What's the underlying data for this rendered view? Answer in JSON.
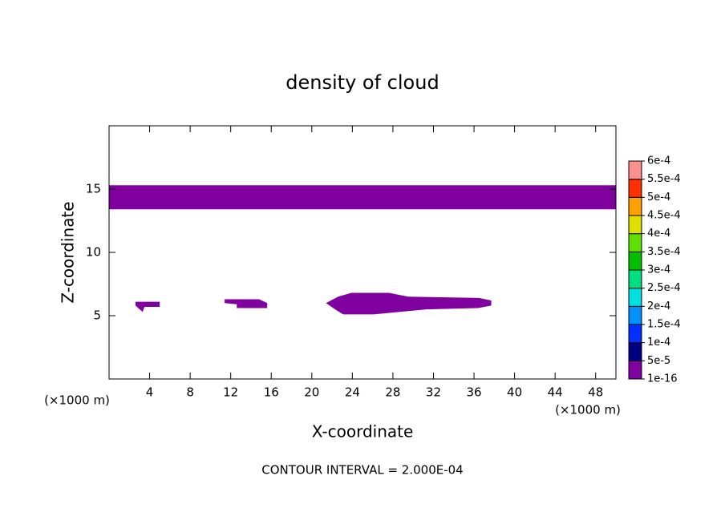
{
  "chart_data": {
    "type": "contour",
    "title": "density of cloud",
    "x_label": "X-coordinate",
    "y_label": "Z-coordinate",
    "x_unit_label": "(×1000 m)",
    "y_unit_label": "(×1000 m)",
    "footnote": "CONTOUR INTERVAL = 2.000E-04",
    "xlim": [
      0,
      50
    ],
    "ylim": [
      0,
      20
    ],
    "xticks": [
      4,
      8,
      12,
      16,
      20,
      24,
      28,
      32,
      36,
      40,
      44,
      48
    ],
    "yticks": [
      5,
      10,
      15
    ],
    "contours": [
      {
        "color": "#8000a0",
        "x": [
          0,
          50,
          50,
          0
        ],
        "y": [
          15.3,
          15.3,
          13.4,
          13.4
        ]
      },
      {
        "color": "#8000a0",
        "x": [
          2.6,
          5,
          5,
          3.5,
          3.3,
          2.6
        ],
        "y": [
          6.1,
          6.1,
          5.7,
          5.7,
          5.3,
          5.8
        ]
      },
      {
        "color": "#8000a0",
        "x": [
          11.4,
          14.8,
          15.6,
          15.6,
          12.6,
          12.6,
          11.4
        ],
        "y": [
          6.3,
          6.3,
          6.0,
          5.6,
          5.6,
          5.9,
          6.0
        ]
      },
      {
        "color": "#8000a0",
        "x": [
          21.4,
          22.6,
          23.9,
          27.6,
          29.5,
          36.5,
          37.7,
          37.7,
          36.4,
          31.3,
          26.1,
          23.1,
          22.3
        ],
        "y": [
          6.0,
          6.5,
          6.8,
          6.8,
          6.5,
          6.4,
          6.2,
          5.8,
          5.6,
          5.5,
          5.1,
          5.1,
          5.5
        ]
      }
    ],
    "colorbar": {
      "levels": [
        {
          "value": 1e-16,
          "label": "1e-16"
        },
        {
          "value": 5e-05,
          "label": "5e-5"
        },
        {
          "value": 0.0001,
          "label": "1e-4"
        },
        {
          "value": 0.00015,
          "label": "1.5e-4"
        },
        {
          "value": 0.0002,
          "label": "2e-4"
        },
        {
          "value": 0.00025,
          "label": "2.5e-4"
        },
        {
          "value": 0.0003,
          "label": "3e-4"
        },
        {
          "value": 0.00035,
          "label": "3.5e-4"
        },
        {
          "value": 0.0004,
          "label": "4e-4"
        },
        {
          "value": 0.00045,
          "label": "4.5e-4"
        },
        {
          "value": 0.0005,
          "label": "5e-4"
        },
        {
          "value": 0.00055,
          "label": "5.5e-4"
        },
        {
          "value": 0.0006,
          "label": "6e-4"
        }
      ],
      "colors": [
        "#8000a0",
        "#000080",
        "#0030ff",
        "#0090ff",
        "#00e0e0",
        "#00e080",
        "#00c000",
        "#60e000",
        "#e0e000",
        "#ffa000",
        "#ff3000",
        "#ff9090"
      ]
    }
  }
}
